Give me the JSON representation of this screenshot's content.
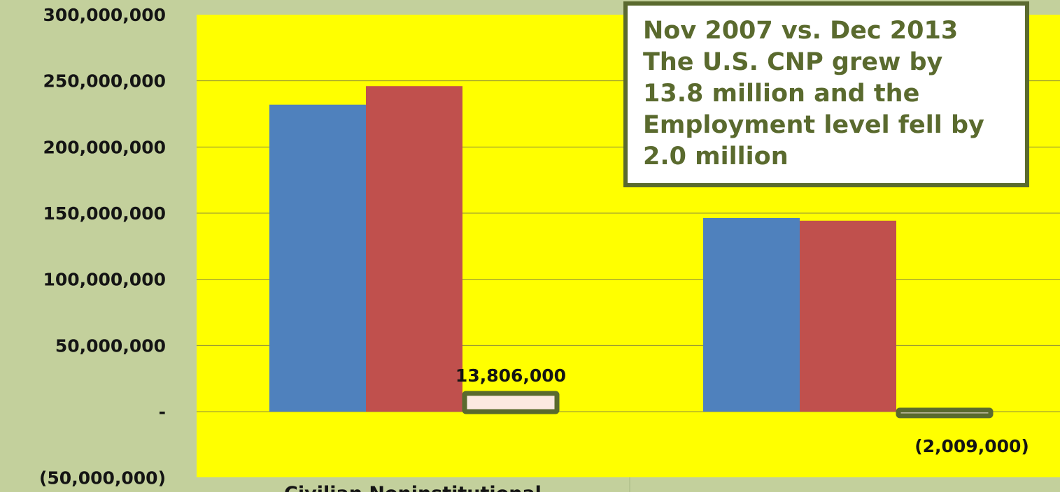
{
  "chart_data": {
    "type": "bar",
    "categories": [
      "Civilian Noninstitutional",
      ""
    ],
    "series": [
      {
        "values": [
          232000000,
          146300000
        ],
        "color": "#4f81bd"
      },
      {
        "values": [
          246000000,
          144300000
        ],
        "color": "#c0504d"
      },
      {
        "values": [
          13806000,
          -2009000
        ],
        "color": "#fbe9e1",
        "border_color": "#5a6a2e"
      }
    ],
    "data_labels": [
      "13,806,000",
      "(2,009,000)"
    ],
    "ylim": [
      -50000000,
      300000000
    ],
    "y_ticks": [
      {
        "value": 300000000,
        "label": "300,000,000"
      },
      {
        "value": 250000000,
        "label": "250,000,000"
      },
      {
        "value": 200000000,
        "label": "200,000,000"
      },
      {
        "value": 150000000,
        "label": "150,000,000"
      },
      {
        "value": 100000000,
        "label": "100,000,000"
      },
      {
        "value": 50000000,
        "label": "50,000,000"
      },
      {
        "value": 0,
        "label": "-"
      },
      {
        "value": -50000000,
        "label": "(50,000,000)"
      }
    ],
    "annotation": "Nov 2007 vs. Dec 2013\nThe U.S. CNP grew by\n13.8 million and the\nEmployment level fell by\n2.0 million",
    "plot_background": "#ffff00",
    "page_background": "#c3d09c",
    "gridlines": true,
    "legend": "none"
  }
}
